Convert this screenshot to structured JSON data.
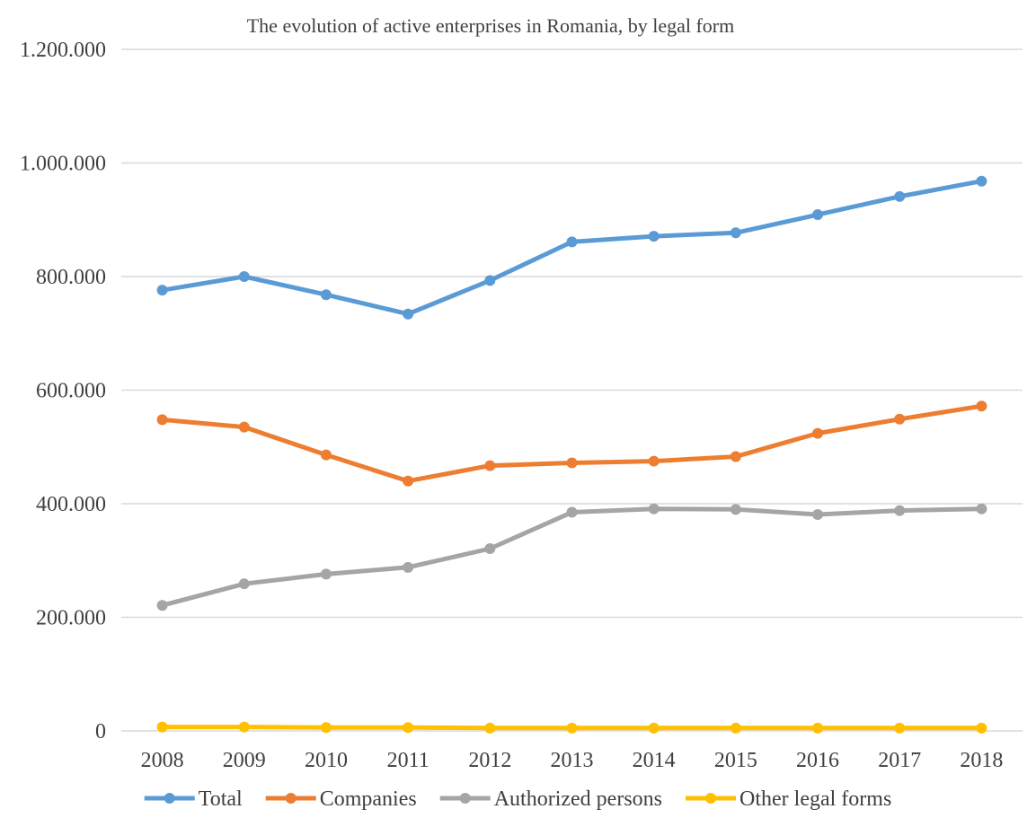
{
  "chart_data": {
    "type": "line",
    "title": "The evolution of active enterprises in Romania, by legal form",
    "xlabel": "",
    "ylabel": "",
    "categories": [
      "2008",
      "2009",
      "2010",
      "2011",
      "2012",
      "2013",
      "2014",
      "2015",
      "2016",
      "2017",
      "2018"
    ],
    "ylim": [
      0,
      1200000
    ],
    "yticks": [
      0,
      200000,
      400000,
      600000,
      800000,
      1000000,
      1200000
    ],
    "ytick_labels": [
      "0",
      "200.000",
      "400.000",
      "600.000",
      "800.000",
      "1.000.000",
      "1.200.000"
    ],
    "grid": true,
    "legend_position": "bottom",
    "series": [
      {
        "name": "Total",
        "color": "#5b9bd5",
        "values": [
          776000,
          800000,
          768000,
          734000,
          793000,
          861000,
          871000,
          877000,
          909000,
          941000,
          968000
        ]
      },
      {
        "name": "Companies",
        "color": "#ed7d31",
        "values": [
          548000,
          535000,
          486000,
          440000,
          467000,
          472000,
          475000,
          483000,
          524000,
          549000,
          572000
        ]
      },
      {
        "name": "Authorized persons",
        "color": "#a5a5a5",
        "values": [
          221000,
          259000,
          276000,
          288000,
          321000,
          385000,
          391000,
          390000,
          381000,
          388000,
          391000
        ]
      },
      {
        "name": "Other legal forms",
        "color": "#ffc000",
        "values": [
          7000,
          7000,
          6000,
          6000,
          5000,
          5000,
          5000,
          5000,
          5000,
          5000,
          5000
        ]
      }
    ]
  }
}
